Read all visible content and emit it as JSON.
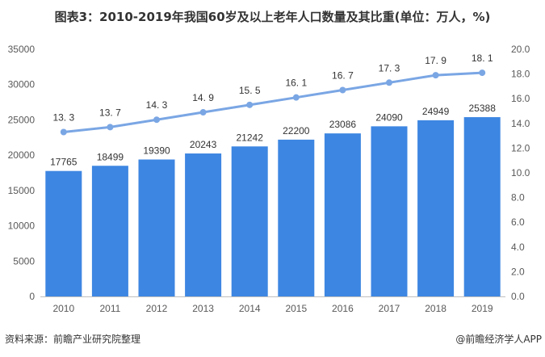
{
  "title": "图表3：2010-2019年我国60岁及以上老年人口数量及其比重(单位：万人，%)",
  "source": "资料来源：前瞻产业研究院整理",
  "brand": "@前瞻经济学人APP",
  "chart_data": {
    "type": "bar+line",
    "categories": [
      "2010",
      "2011",
      "2012",
      "2013",
      "2014",
      "2015",
      "2016",
      "2017",
      "2018",
      "2019"
    ],
    "series": [
      {
        "type": "bar",
        "axis": "left",
        "values": [
          17765,
          18499,
          19390,
          20243,
          21242,
          22200,
          23086,
          24090,
          24949,
          25388
        ]
      },
      {
        "type": "line",
        "axis": "right",
        "values": [
          13.3,
          13.7,
          14.3,
          14.9,
          15.5,
          16.1,
          16.7,
          17.3,
          17.9,
          18.1
        ]
      }
    ],
    "ylim_left": [
      0,
      35000
    ],
    "yticks_left": [
      0,
      5000,
      10000,
      15000,
      20000,
      25000,
      30000,
      35000
    ],
    "ylim_right": [
      0,
      20
    ],
    "yticks_right": [
      "0.0",
      "2.0",
      "4.0",
      "6.0",
      "8.0",
      "10.0",
      "12.0",
      "14.0",
      "16.0",
      "18.0",
      "20.0"
    ],
    "grid": false,
    "colors": {
      "bar": "#3d86e2",
      "line": "#7aa6e4"
    }
  }
}
